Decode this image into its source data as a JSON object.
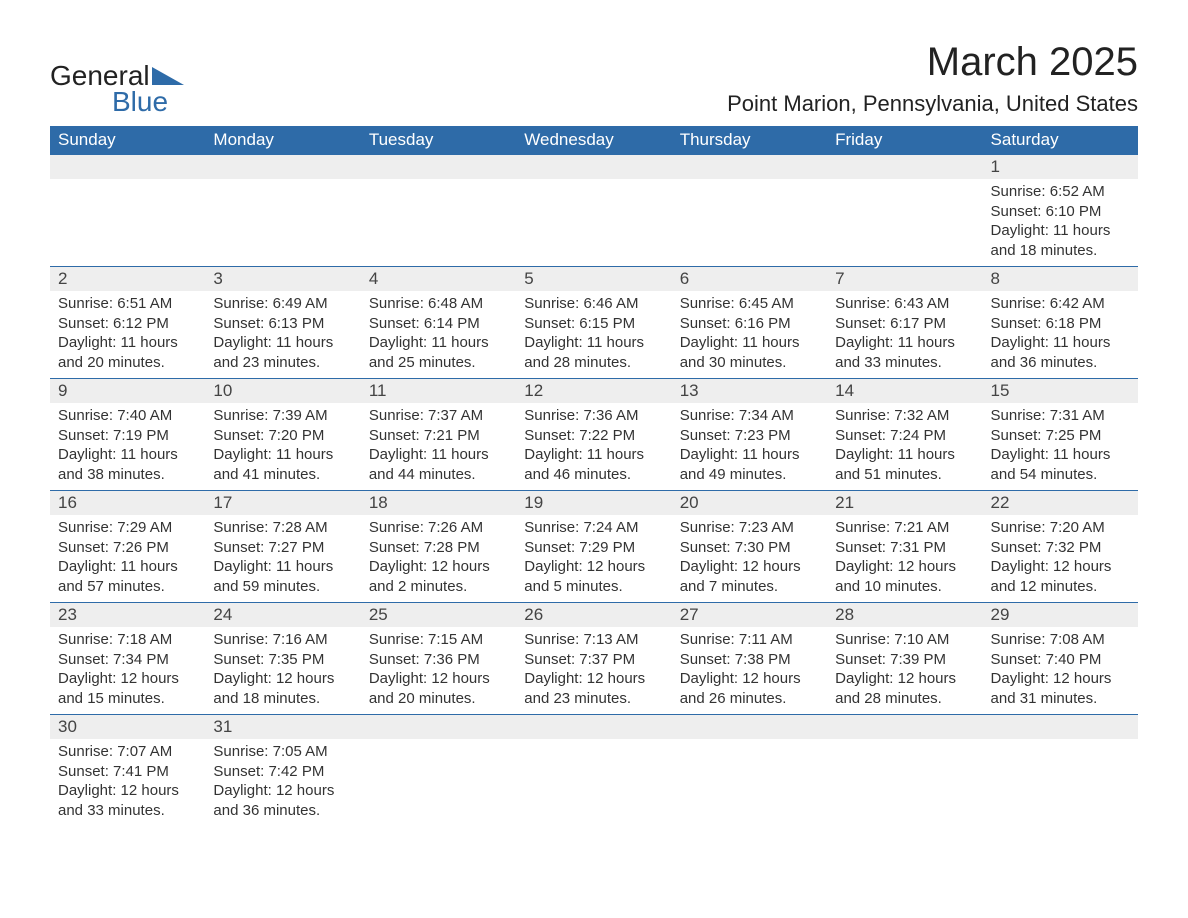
{
  "logo": {
    "text1": "General",
    "text2": "Blue",
    "shape_color": "#2e6ba8"
  },
  "title": "March 2025",
  "location": "Point Marion, Pennsylvania, United States",
  "colors": {
    "header_bg": "#2e6ba8",
    "header_text": "#ffffff",
    "daynum_bg": "#eeeeee",
    "border": "#2e6ba8",
    "text": "#333333",
    "background": "#ffffff"
  },
  "fonts": {
    "title_size": 40,
    "location_size": 22,
    "header_size": 17,
    "daynum_size": 17,
    "info_size": 15
  },
  "weekdays": [
    "Sunday",
    "Monday",
    "Tuesday",
    "Wednesday",
    "Thursday",
    "Friday",
    "Saturday"
  ],
  "weeks": [
    [
      null,
      null,
      null,
      null,
      null,
      null,
      {
        "n": "1",
        "sr": "6:52 AM",
        "ss": "6:10 PM",
        "dl": "11 hours and 18 minutes."
      }
    ],
    [
      {
        "n": "2",
        "sr": "6:51 AM",
        "ss": "6:12 PM",
        "dl": "11 hours and 20 minutes."
      },
      {
        "n": "3",
        "sr": "6:49 AM",
        "ss": "6:13 PM",
        "dl": "11 hours and 23 minutes."
      },
      {
        "n": "4",
        "sr": "6:48 AM",
        "ss": "6:14 PM",
        "dl": "11 hours and 25 minutes."
      },
      {
        "n": "5",
        "sr": "6:46 AM",
        "ss": "6:15 PM",
        "dl": "11 hours and 28 minutes."
      },
      {
        "n": "6",
        "sr": "6:45 AM",
        "ss": "6:16 PM",
        "dl": "11 hours and 30 minutes."
      },
      {
        "n": "7",
        "sr": "6:43 AM",
        "ss": "6:17 PM",
        "dl": "11 hours and 33 minutes."
      },
      {
        "n": "8",
        "sr": "6:42 AM",
        "ss": "6:18 PM",
        "dl": "11 hours and 36 minutes."
      }
    ],
    [
      {
        "n": "9",
        "sr": "7:40 AM",
        "ss": "7:19 PM",
        "dl": "11 hours and 38 minutes."
      },
      {
        "n": "10",
        "sr": "7:39 AM",
        "ss": "7:20 PM",
        "dl": "11 hours and 41 minutes."
      },
      {
        "n": "11",
        "sr": "7:37 AM",
        "ss": "7:21 PM",
        "dl": "11 hours and 44 minutes."
      },
      {
        "n": "12",
        "sr": "7:36 AM",
        "ss": "7:22 PM",
        "dl": "11 hours and 46 minutes."
      },
      {
        "n": "13",
        "sr": "7:34 AM",
        "ss": "7:23 PM",
        "dl": "11 hours and 49 minutes."
      },
      {
        "n": "14",
        "sr": "7:32 AM",
        "ss": "7:24 PM",
        "dl": "11 hours and 51 minutes."
      },
      {
        "n": "15",
        "sr": "7:31 AM",
        "ss": "7:25 PM",
        "dl": "11 hours and 54 minutes."
      }
    ],
    [
      {
        "n": "16",
        "sr": "7:29 AM",
        "ss": "7:26 PM",
        "dl": "11 hours and 57 minutes."
      },
      {
        "n": "17",
        "sr": "7:28 AM",
        "ss": "7:27 PM",
        "dl": "11 hours and 59 minutes."
      },
      {
        "n": "18",
        "sr": "7:26 AM",
        "ss": "7:28 PM",
        "dl": "12 hours and 2 minutes."
      },
      {
        "n": "19",
        "sr": "7:24 AM",
        "ss": "7:29 PM",
        "dl": "12 hours and 5 minutes."
      },
      {
        "n": "20",
        "sr": "7:23 AM",
        "ss": "7:30 PM",
        "dl": "12 hours and 7 minutes."
      },
      {
        "n": "21",
        "sr": "7:21 AM",
        "ss": "7:31 PM",
        "dl": "12 hours and 10 minutes."
      },
      {
        "n": "22",
        "sr": "7:20 AM",
        "ss": "7:32 PM",
        "dl": "12 hours and 12 minutes."
      }
    ],
    [
      {
        "n": "23",
        "sr": "7:18 AM",
        "ss": "7:34 PM",
        "dl": "12 hours and 15 minutes."
      },
      {
        "n": "24",
        "sr": "7:16 AM",
        "ss": "7:35 PM",
        "dl": "12 hours and 18 minutes."
      },
      {
        "n": "25",
        "sr": "7:15 AM",
        "ss": "7:36 PM",
        "dl": "12 hours and 20 minutes."
      },
      {
        "n": "26",
        "sr": "7:13 AM",
        "ss": "7:37 PM",
        "dl": "12 hours and 23 minutes."
      },
      {
        "n": "27",
        "sr": "7:11 AM",
        "ss": "7:38 PM",
        "dl": "12 hours and 26 minutes."
      },
      {
        "n": "28",
        "sr": "7:10 AM",
        "ss": "7:39 PM",
        "dl": "12 hours and 28 minutes."
      },
      {
        "n": "29",
        "sr": "7:08 AM",
        "ss": "7:40 PM",
        "dl": "12 hours and 31 minutes."
      }
    ],
    [
      {
        "n": "30",
        "sr": "7:07 AM",
        "ss": "7:41 PM",
        "dl": "12 hours and 33 minutes."
      },
      {
        "n": "31",
        "sr": "7:05 AM",
        "ss": "7:42 PM",
        "dl": "12 hours and 36 minutes."
      },
      null,
      null,
      null,
      null,
      null
    ]
  ],
  "labels": {
    "sunrise": "Sunrise: ",
    "sunset": "Sunset: ",
    "daylight": "Daylight: "
  }
}
